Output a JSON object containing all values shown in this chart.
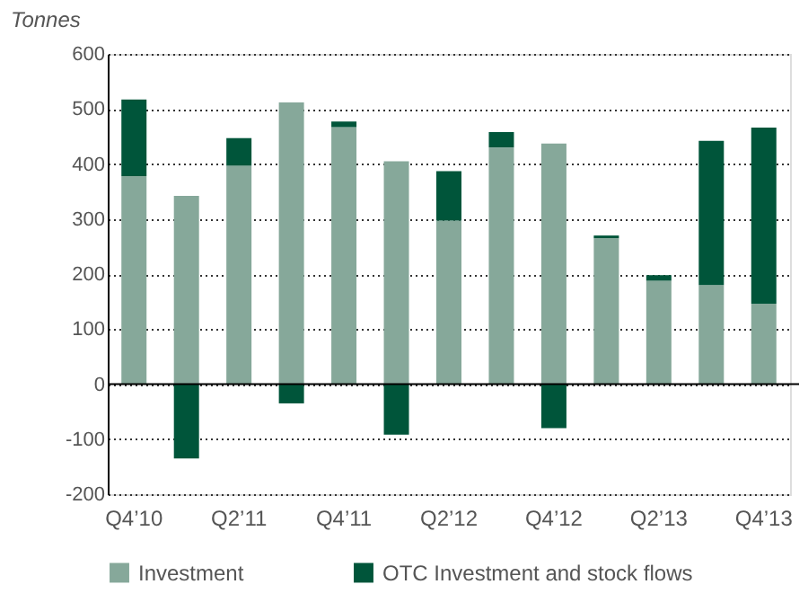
{
  "chart_data": {
    "type": "bar",
    "stacked": true,
    "ylabel": "Tonnes",
    "categories": [
      "Q4’10",
      null,
      "Q2’11",
      null,
      "Q4’11",
      null,
      "Q2’12",
      null,
      "Q4’12",
      null,
      "Q2’13",
      null,
      "Q4’13"
    ],
    "series": [
      {
        "name": "Investment",
        "color": "#86a89a",
        "values": [
          378,
          342,
          397,
          512,
          467,
          405,
          297,
          430,
          437,
          265,
          188,
          180,
          146
        ]
      },
      {
        "name": "OTC Investment and stock flows",
        "color": "#00553a",
        "values": [
          139,
          -135,
          50,
          -35,
          10,
          -92,
          90,
          28,
          -80,
          5,
          10,
          262,
          320
        ]
      }
    ],
    "ylim": [
      -200,
      600
    ],
    "yticks": [
      -200,
      -100,
      0,
      100,
      200,
      300,
      400,
      500,
      600
    ],
    "grid": "y",
    "legend": "bottom"
  }
}
